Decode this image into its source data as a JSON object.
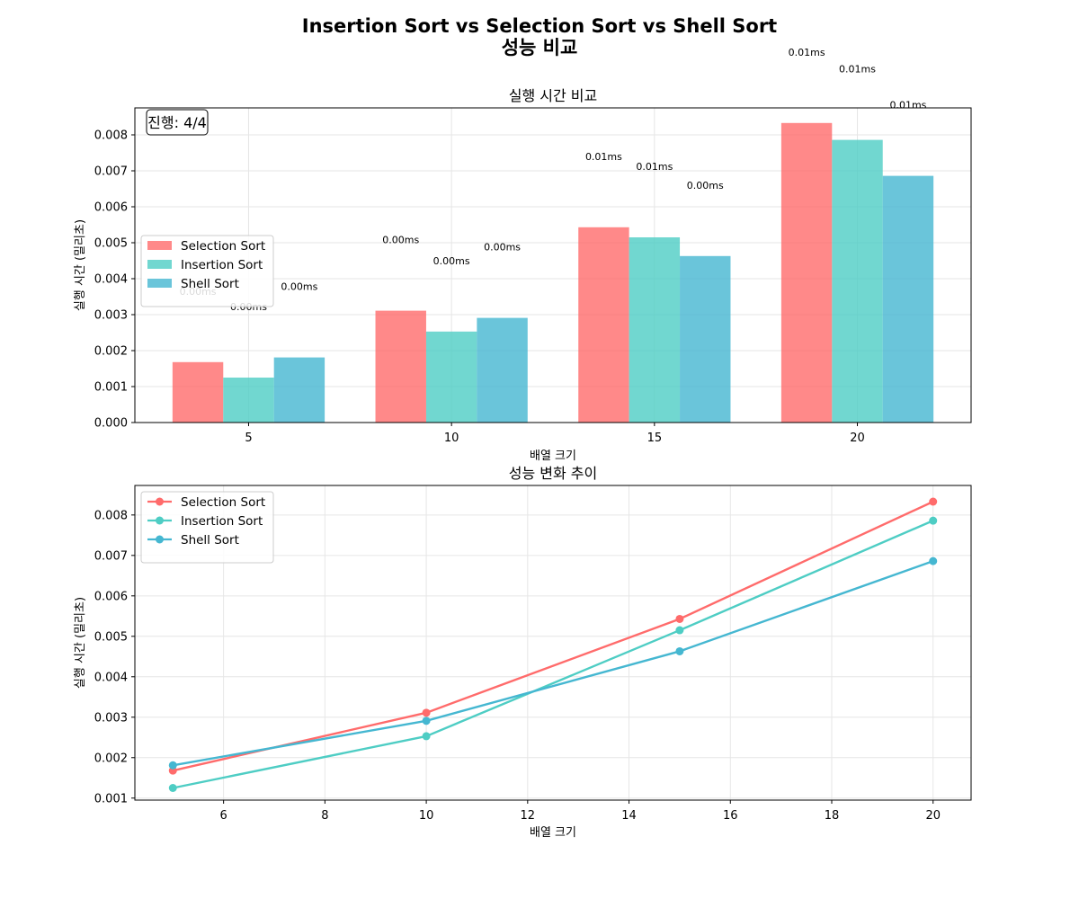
{
  "figure": {
    "title_line1": "Insertion Sort vs Selection Sort vs Shell Sort",
    "title_line2": "성능 비교"
  },
  "colors": {
    "selection": "#FF6B6B",
    "insertion": "#4ECDC4",
    "shell": "#45B7D1",
    "grid": "#e6e6e6"
  },
  "chart_data": [
    {
      "type": "bar",
      "title": "실행 시간 비교",
      "xlabel": "배열 크기",
      "ylabel": "실행 시간 (밀리초)",
      "categories": [
        "5",
        "10",
        "15",
        "20"
      ],
      "ylim": [
        0,
        0.00875
      ],
      "yticks": [
        0.0,
        0.001,
        0.002,
        0.003,
        0.004,
        0.005,
        0.006,
        0.007,
        0.008
      ],
      "yticks_labels": [
        "0.000",
        "0.001",
        "0.002",
        "0.003",
        "0.004",
        "0.005",
        "0.006",
        "0.007",
        "0.008"
      ],
      "grid": true,
      "legend_placement": "center-left",
      "annotation": "진행: 4/4",
      "series": [
        {
          "name": "Selection Sort",
          "values": [
            0.00168,
            0.00311,
            0.00543,
            0.00833
          ],
          "labels": [
            "0.00ms",
            "0.00ms",
            "0.01ms",
            "0.01ms"
          ]
        },
        {
          "name": "Insertion Sort",
          "values": [
            0.00125,
            0.00253,
            0.00515,
            0.00786
          ],
          "labels": [
            "0.00ms",
            "0.00ms",
            "0.01ms",
            "0.01ms"
          ]
        },
        {
          "name": "Shell Sort",
          "values": [
            0.00181,
            0.00291,
            0.00463,
            0.00686
          ],
          "labels": [
            "0.00ms",
            "0.00ms",
            "0.00ms",
            "0.01ms"
          ]
        }
      ]
    },
    {
      "type": "line",
      "title": "성능 변화 추이",
      "xlabel": "배열 크기",
      "ylabel": "실행 시간 (밀리초)",
      "x": [
        5,
        10,
        15,
        20
      ],
      "xlim": [
        4.25,
        20.75
      ],
      "ylim": [
        0.00095,
        0.00873
      ],
      "xticks": [
        6,
        8,
        10,
        12,
        14,
        16,
        18,
        20
      ],
      "xticks_labels": [
        "6",
        "8",
        "10",
        "12",
        "14",
        "16",
        "18",
        "20"
      ],
      "yticks": [
        0.001,
        0.002,
        0.003,
        0.004,
        0.005,
        0.006,
        0.007,
        0.008
      ],
      "yticks_labels": [
        "0.001",
        "0.002",
        "0.003",
        "0.004",
        "0.005",
        "0.006",
        "0.007",
        "0.008"
      ],
      "grid": true,
      "legend_placement": "top-left",
      "series": [
        {
          "name": "Selection Sort",
          "values": [
            0.00168,
            0.00311,
            0.00543,
            0.00833
          ]
        },
        {
          "name": "Insertion Sort",
          "values": [
            0.00125,
            0.00253,
            0.00515,
            0.00786
          ]
        },
        {
          "name": "Shell Sort",
          "values": [
            0.00181,
            0.00291,
            0.00463,
            0.00686
          ]
        }
      ]
    }
  ]
}
